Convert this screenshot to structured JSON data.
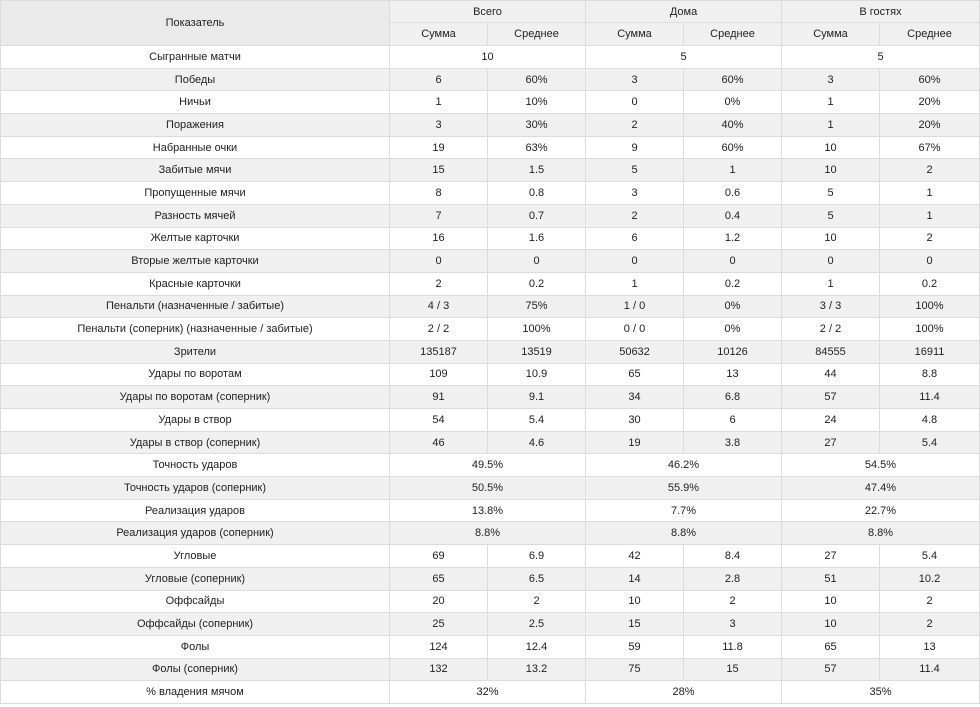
{
  "header": {
    "indicator": "Показатель",
    "groups": [
      "Всего",
      "Дома",
      "В гостях"
    ],
    "sub": [
      "Сумма",
      "Среднее"
    ]
  },
  "rows": [
    {
      "label": "Сыгранные матчи",
      "merged": true,
      "values": [
        "10",
        "5",
        "5"
      ]
    },
    {
      "label": "Победы",
      "values": [
        "6",
        "60%",
        "3",
        "60%",
        "3",
        "60%"
      ]
    },
    {
      "label": "Ничьи",
      "values": [
        "1",
        "10%",
        "0",
        "0%",
        "1",
        "20%"
      ]
    },
    {
      "label": "Поражения",
      "values": [
        "3",
        "30%",
        "2",
        "40%",
        "1",
        "20%"
      ]
    },
    {
      "label": "Набранные очки",
      "values": [
        "19",
        "63%",
        "9",
        "60%",
        "10",
        "67%"
      ]
    },
    {
      "label": "Забитые мячи",
      "values": [
        "15",
        "1.5",
        "5",
        "1",
        "10",
        "2"
      ]
    },
    {
      "label": "Пропущенные мячи",
      "values": [
        "8",
        "0.8",
        "3",
        "0.6",
        "5",
        "1"
      ]
    },
    {
      "label": "Разность мячей",
      "values": [
        "7",
        "0.7",
        "2",
        "0.4",
        "5",
        "1"
      ]
    },
    {
      "label": "Желтые карточки",
      "values": [
        "16",
        "1.6",
        "6",
        "1.2",
        "10",
        "2"
      ]
    },
    {
      "label": "Вторые желтые карточки",
      "values": [
        "0",
        "0",
        "0",
        "0",
        "0",
        "0"
      ]
    },
    {
      "label": "Красные карточки",
      "values": [
        "2",
        "0.2",
        "1",
        "0.2",
        "1",
        "0.2"
      ]
    },
    {
      "label": "Пенальти (назначенные / забитые)",
      "values": [
        "4 / 3",
        "75%",
        "1 / 0",
        "0%",
        "3 / 3",
        "100%"
      ]
    },
    {
      "label": "Пенальти (соперник) (назначенные / забитые)",
      "values": [
        "2 / 2",
        "100%",
        "0 / 0",
        "0%",
        "2 / 2",
        "100%"
      ]
    },
    {
      "label": "Зрители",
      "values": [
        "135187",
        "13519",
        "50632",
        "10126",
        "84555",
        "16911"
      ]
    },
    {
      "label": "Удары по воротам",
      "values": [
        "109",
        "10.9",
        "65",
        "13",
        "44",
        "8.8"
      ]
    },
    {
      "label": "Удары по воротам (соперник)",
      "values": [
        "91",
        "9.1",
        "34",
        "6.8",
        "57",
        "11.4"
      ]
    },
    {
      "label": "Удары в створ",
      "values": [
        "54",
        "5.4",
        "30",
        "6",
        "24",
        "4.8"
      ]
    },
    {
      "label": "Удары в створ (соперник)",
      "values": [
        "46",
        "4.6",
        "19",
        "3.8",
        "27",
        "5.4"
      ]
    },
    {
      "label": "Точность ударов",
      "merged": true,
      "values": [
        "49.5%",
        "46.2%",
        "54.5%"
      ]
    },
    {
      "label": "Точность ударов (соперник)",
      "merged": true,
      "values": [
        "50.5%",
        "55.9%",
        "47.4%"
      ]
    },
    {
      "label": "Реализация ударов",
      "merged": true,
      "values": [
        "13.8%",
        "7.7%",
        "22.7%"
      ]
    },
    {
      "label": "Реализация ударов (соперник)",
      "merged": true,
      "values": [
        "8.8%",
        "8.8%",
        "8.8%"
      ]
    },
    {
      "label": "Угловые",
      "values": [
        "69",
        "6.9",
        "42",
        "8.4",
        "27",
        "5.4"
      ]
    },
    {
      "label": "Угловые (соперник)",
      "values": [
        "65",
        "6.5",
        "14",
        "2.8",
        "51",
        "10.2"
      ]
    },
    {
      "label": "Оффсайды",
      "values": [
        "20",
        "2",
        "10",
        "2",
        "10",
        "2"
      ]
    },
    {
      "label": "Оффсайды (соперник)",
      "values": [
        "25",
        "2.5",
        "15",
        "3",
        "10",
        "2"
      ]
    },
    {
      "label": "Фолы",
      "values": [
        "124",
        "12.4",
        "59",
        "11.8",
        "65",
        "13"
      ]
    },
    {
      "label": "Фолы (соперник)",
      "values": [
        "132",
        "13.2",
        "75",
        "15",
        "57",
        "11.4"
      ]
    },
    {
      "label": "% владения мячом",
      "merged": true,
      "values": [
        "32%",
        "28%",
        "35%"
      ]
    }
  ]
}
